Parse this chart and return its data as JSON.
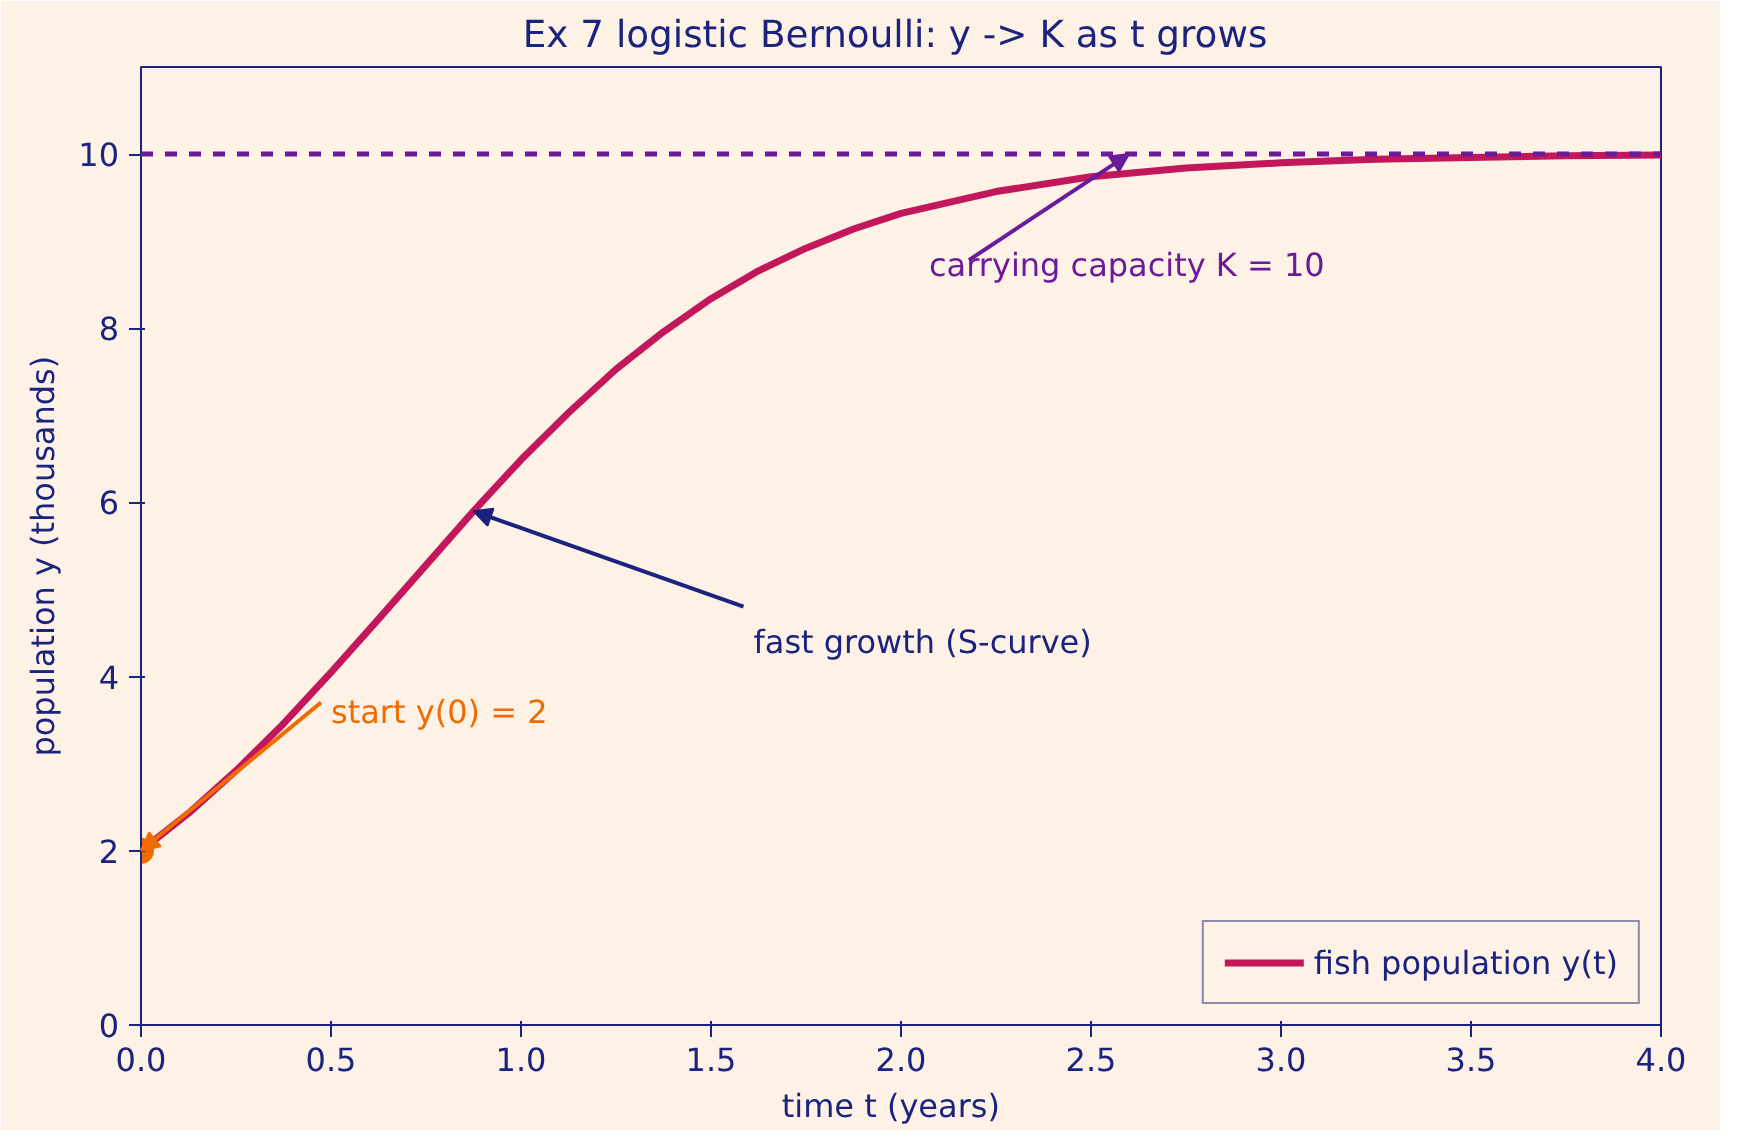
{
  "chart_data": {
    "type": "line",
    "title": "Ex 7 logistic Bernoulli:  y -> K as t grows",
    "xlabel": "time  t  (years)",
    "ylabel": "population  y  (thousands)",
    "x": [
      0,
      0.125,
      0.25,
      0.375,
      0.5,
      0.625,
      0.75,
      0.875,
      1,
      1.125,
      1.25,
      1.375,
      1.5,
      1.625,
      1.75,
      1.875,
      2,
      2.25,
      2.5,
      2.75,
      3,
      3.25,
      3.5,
      3.75,
      4
    ],
    "series": [
      {
        "name": "fish population y(t)",
        "color": "#c2185b",
        "values": [
          2,
          2.43,
          2.92,
          3.46,
          4.05,
          4.66,
          5.28,
          5.9,
          6.49,
          7.03,
          7.53,
          7.96,
          8.34,
          8.66,
          8.92,
          9.14,
          9.32,
          9.57,
          9.74,
          9.84,
          9.9,
          9.94,
          9.96,
          9.98,
          9.99
        ]
      },
      {
        "type": "scatter",
        "marker": "circle",
        "x": [
          0
        ],
        "color": "#ef6c00",
        "values": [
          2
        ]
      }
    ],
    "xlim": [
      0,
      4
    ],
    "ylim": [
      0,
      11
    ],
    "xticks": [
      {
        "value": 0,
        "label": "0.0"
      },
      {
        "value": 0.5,
        "label": "0.5"
      },
      {
        "value": 1,
        "label": "1.0"
      },
      {
        "value": 1.5,
        "label": "1.5"
      },
      {
        "value": 2,
        "label": "2.0"
      },
      {
        "value": 2.5,
        "label": "2.5"
      },
      {
        "value": 3,
        "label": "3.0"
      },
      {
        "value": 3.5,
        "label": "3.5"
      },
      {
        "value": 4,
        "label": "4.0"
      }
    ],
    "yticks": [
      0,
      2,
      4,
      6,
      8,
      10
    ],
    "ref_lines": [
      {
        "axis": "y",
        "value": 10,
        "label": null,
        "color": "#6a1b9a",
        "line_style": "dashed"
      }
    ],
    "annotations": [
      {
        "text": "start  y(0) = 2",
        "x": 0,
        "y": 2
      },
      {
        "text": "fast growth (S-curve)",
        "x": 0.875,
        "y": 5.9
      },
      {
        "text": "carrying capacity K = 10",
        "x": 2.6,
        "y": 10
      }
    ],
    "grid": false,
    "legend": "bottom right",
    "marker": "none",
    "line_style": "solid"
  }
}
